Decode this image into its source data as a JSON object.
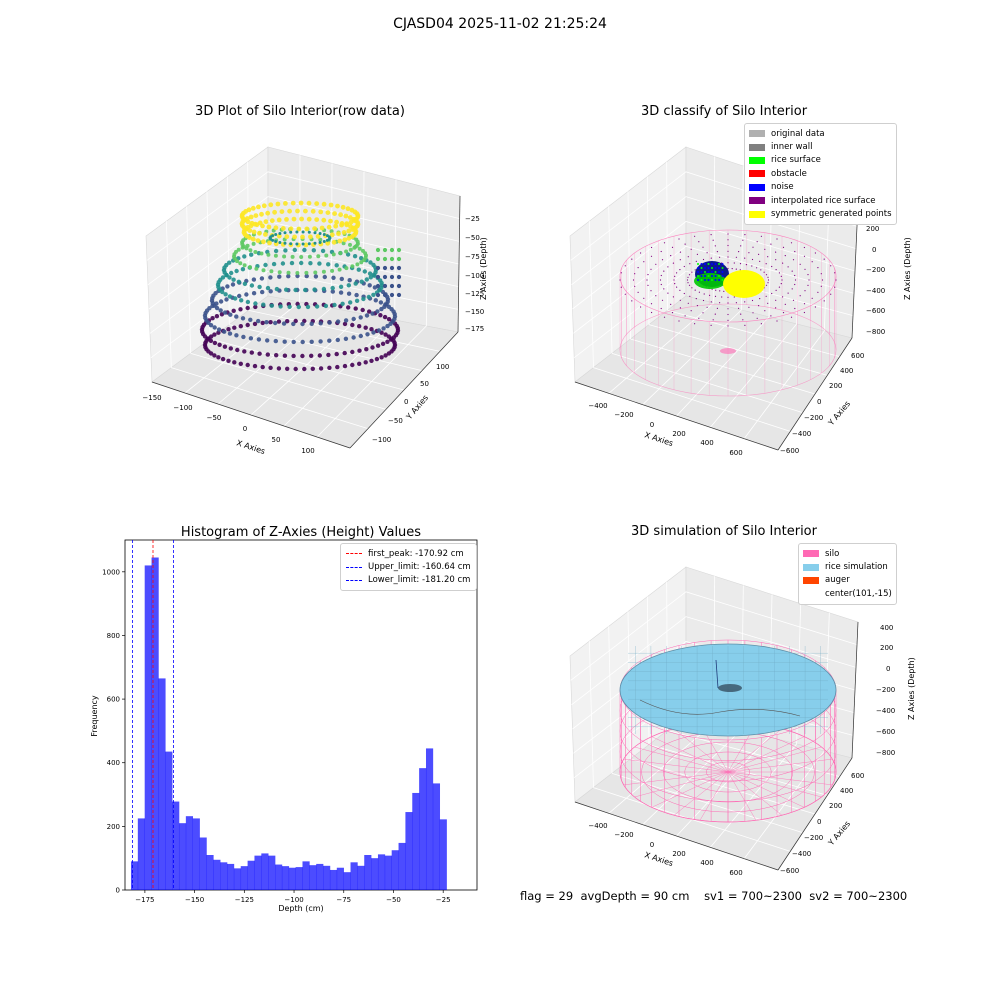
{
  "suptitle": "CJASD04 2025-11-02 21:25:24",
  "panels": {
    "raw": {
      "title": "3D Plot of Silo Interior(row data)",
      "xlabel": "X Axies",
      "ylabel": "Y Axies",
      "zlabel": "Z Axies (Depth)",
      "xticks": [
        "−150",
        "−100",
        "−50",
        "0",
        "50",
        "100"
      ],
      "yticks": [
        "−100",
        "−50",
        "0",
        "50",
        "100"
      ],
      "zticks": [
        "−25",
        "−50",
        "−75",
        "−100",
        "−125",
        "−150",
        "−175"
      ]
    },
    "classify": {
      "title": "3D classify of Silo Interior",
      "xlabel": "X Axies",
      "ylabel": "Y Axies",
      "zlabel": "Z Axies (Depth)",
      "xticks": [
        "−400",
        "−200",
        "0",
        "200",
        "400",
        "600"
      ],
      "yticks": [
        "−600",
        "−400",
        "−200",
        "0",
        "200",
        "400",
        "600"
      ],
      "zticks": [
        "200",
        "0",
        "−200",
        "−400",
        "−600",
        "−800"
      ],
      "legend": [
        {
          "label": "original data",
          "color": "#b0b0b0"
        },
        {
          "label": "inner wall",
          "color": "#808080"
        },
        {
          "label": "rice surface",
          "color": "#00ff00"
        },
        {
          "label": "obstacle",
          "color": "#ff0000"
        },
        {
          "label": "noise",
          "color": "#0000ff"
        },
        {
          "label": "interpolated rice surface",
          "color": "#800080"
        },
        {
          "label": "symmetric generated points",
          "color": "#ffff00"
        }
      ]
    },
    "simulation": {
      "title": "3D simulation of Silo Interior",
      "xlabel": "X Axies",
      "ylabel": "Y Axies",
      "zlabel": "Z Axies (Depth)",
      "xticks": [
        "−400",
        "−200",
        "0",
        "200",
        "400",
        "600"
      ],
      "yticks": [
        "−600",
        "−400",
        "−200",
        "0",
        "200",
        "400",
        "600"
      ],
      "zticks": [
        "400",
        "200",
        "0",
        "−200",
        "−400",
        "−600",
        "−800"
      ],
      "legend": [
        {
          "label": "silo",
          "color": "#ff69b4"
        },
        {
          "label": "rice simulation",
          "color": "#87ceeb"
        },
        {
          "label": "auger",
          "color": "#ff4500"
        },
        {
          "label": "center(101,-15)",
          "color": ""
        }
      ]
    }
  },
  "chart_data": {
    "type": "bar",
    "title": "Histogram of Z-Axies (Height) Values",
    "xlabel": "Depth (cm)",
    "ylabel": "Frequency",
    "bar_color": "#0000ff",
    "xlim": [
      -185,
      -8
    ],
    "ylim": [
      0,
      1100
    ],
    "xticks": [
      -175,
      -150,
      -125,
      -100,
      -75,
      -50,
      -25
    ],
    "xtick_labels": [
      "−175",
      "−150",
      "−125",
      "−100",
      "−75",
      "−50",
      "−25"
    ],
    "yticks": [
      0,
      200,
      400,
      600,
      800,
      1000
    ],
    "bin_start": -182,
    "bin_width": 3.45,
    "values": [
      90,
      225,
      1020,
      1045,
      665,
      435,
      278,
      210,
      232,
      225,
      165,
      110,
      95,
      87,
      82,
      68,
      75,
      92,
      108,
      115,
      108,
      80,
      75,
      70,
      72,
      90,
      78,
      82,
      76,
      63,
      70,
      56,
      87,
      76,
      110,
      100,
      112,
      108,
      125,
      148,
      245,
      305,
      383,
      445,
      335,
      222
    ],
    "vlines": [
      {
        "x": -170.92,
        "color": "#ff0000",
        "label": "first_peak: -170.92 cm"
      },
      {
        "x": -160.64,
        "color": "#0000ff",
        "label": "Upper_limit: -160.64 cm"
      },
      {
        "x": -181.2,
        "color": "#0000ff",
        "label": "Lower_limit: -181.20 cm"
      }
    ],
    "legend_position": "upper-right"
  },
  "footer": {
    "flag": "flag = 29",
    "avg": "avgDepth = 90 cm",
    "sv1": "sv1 = 700~2300",
    "sv2": "sv2 = 700~2300"
  }
}
